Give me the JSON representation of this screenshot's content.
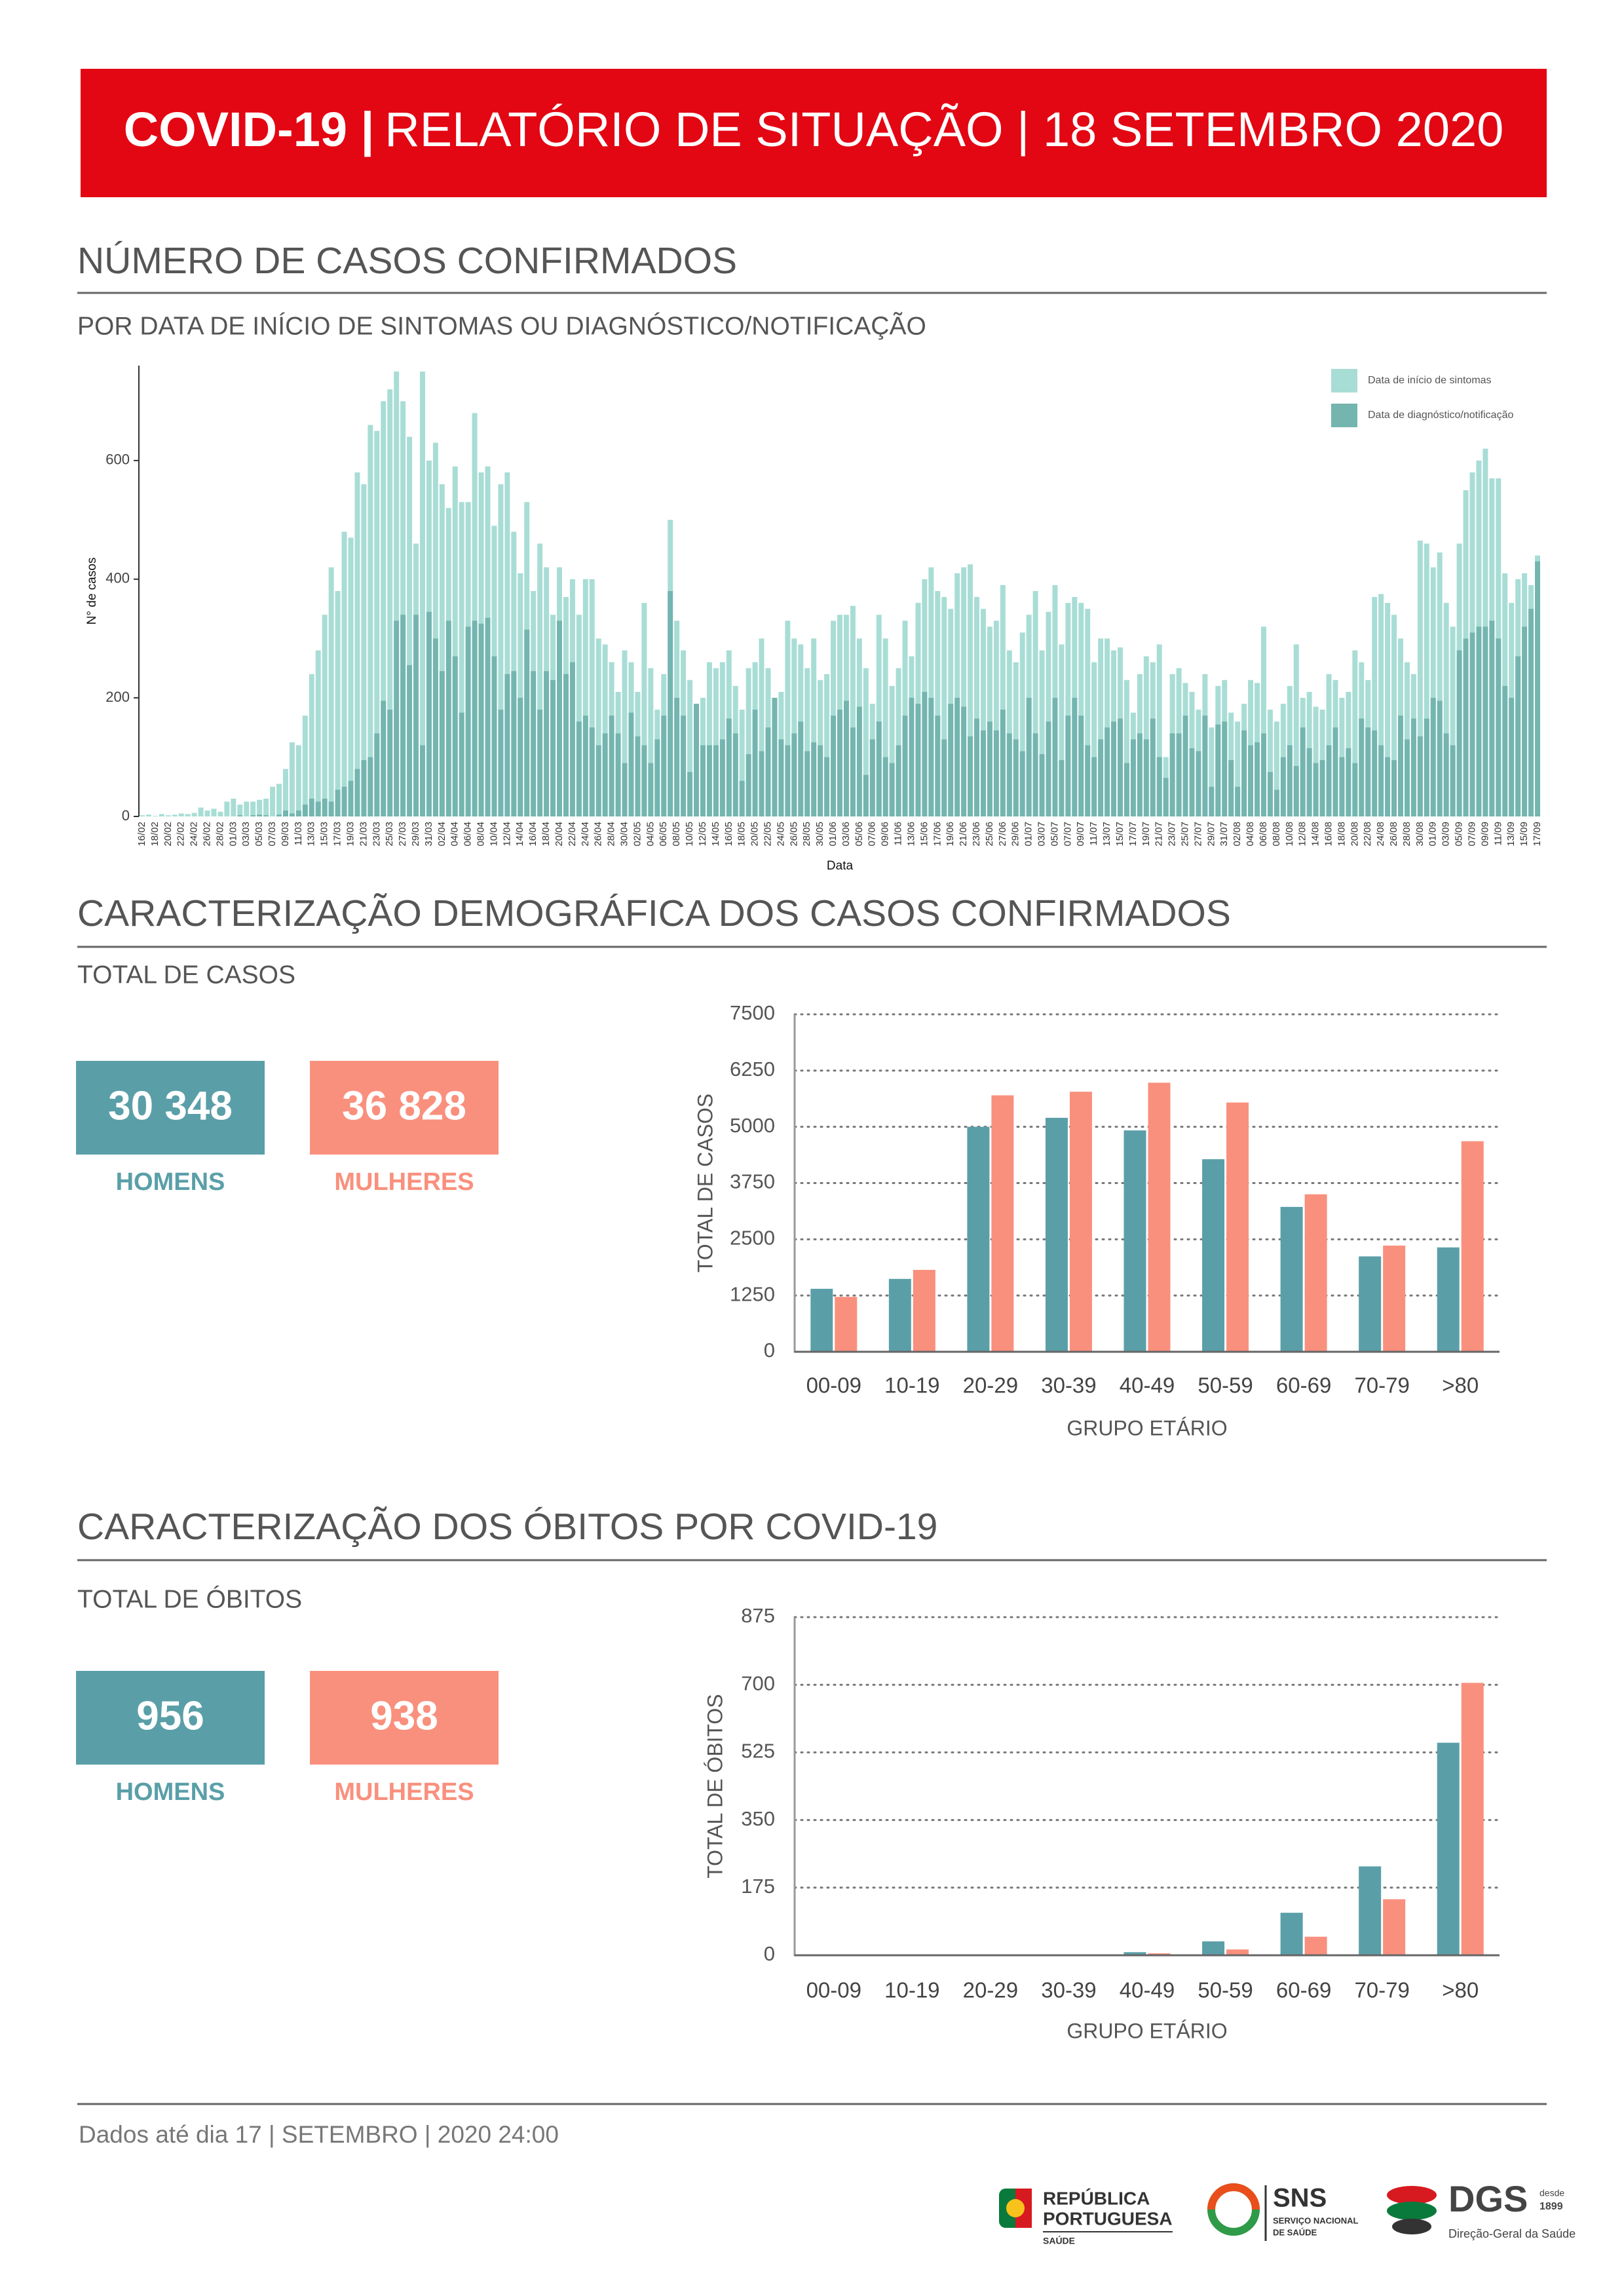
{
  "header": {
    "title_bold": "COVID-19 |",
    "title": "RELATÓRIO DE SITUAÇÃO | 18 SETEMBRO 2020"
  },
  "sections": [
    {
      "title": "NÚMERO DE CASOS CONFIRMADOS",
      "subtitle": "POR DATA DE INÍCIO DE SINTOMAS OU DIAGNÓSTICO/NOTIFICAÇÃO"
    },
    {
      "title": "CARACTERIZAÇÃO DEMOGRÁFICA DOS CASOS CONFIRMADOS",
      "subtitle": "TOTAL DE CASOS",
      "totals": [
        "30 348",
        "36 828"
      ]
    },
    {
      "title": "CARACTERIZAÇÃO DOS ÓBITOS POR COVID-19",
      "subtitle": "TOTAL DE ÓBITOS",
      "totals": [
        "956",
        "938"
      ]
    }
  ],
  "footer": "Dados até dia 17 | SETEMBRO | 2020 24:00",
  "logos": {
    "republica": [
      "REPÚBLICA",
      "PORTUGUESA",
      "SAÚDE"
    ],
    "sns": [
      "SNS",
      "SERVIÇO NACIONAL",
      "DE SAÚDE"
    ],
    "dgs": [
      "DGS",
      "desde",
      "1899",
      "Direção-Geral da Saúde"
    ]
  },
  "chart_data": [
    {
      "type": "bar",
      "barmode": "overlay",
      "xlabel": "Data",
      "ylabel": "N° de casos",
      "legend": "top-right",
      "grid": false,
      "ylim": [
        0,
        760
      ],
      "yticks": [
        0,
        200,
        400,
        600
      ],
      "categories": [
        "16/02",
        null,
        "18/02",
        null,
        "20/02",
        null,
        "22/02",
        null,
        "24/02",
        null,
        "26/02",
        null,
        "28/02",
        null,
        "01/03",
        null,
        "03/03",
        null,
        "05/03",
        null,
        "07/03",
        null,
        "09/03",
        null,
        "11/03",
        null,
        "13/03",
        null,
        "15/03",
        null,
        "17/03",
        null,
        "19/03",
        null,
        "21/03",
        null,
        "23/03",
        null,
        "25/03",
        null,
        "27/03",
        null,
        "29/03",
        null,
        "31/03",
        null,
        "02/04",
        null,
        "04/04",
        null,
        "06/04",
        null,
        "08/04",
        null,
        "10/04",
        null,
        "12/04",
        null,
        "14/04",
        null,
        "16/04",
        null,
        "18/04",
        null,
        "20/04",
        null,
        "22/04",
        null,
        "24/04",
        null,
        "26/04",
        null,
        "28/04",
        null,
        "30/04",
        null,
        "02/05",
        null,
        "04/05",
        null,
        "06/05",
        null,
        "08/05",
        null,
        "10/05",
        null,
        "12/05",
        null,
        "14/05",
        null,
        "16/05",
        null,
        "18/05",
        null,
        "20/05",
        null,
        "22/05",
        null,
        "24/05",
        null,
        "26/05",
        null,
        "28/05",
        null,
        "30/05",
        null,
        "01/06",
        null,
        "03/06",
        null,
        "05/06",
        null,
        "07/06",
        null,
        "09/06",
        null,
        "11/06",
        null,
        "13/06",
        null,
        "15/06",
        null,
        "17/06",
        null,
        "19/06",
        null,
        "21/06",
        null,
        "23/06",
        null,
        "25/06",
        null,
        "27/06",
        null,
        "29/06",
        null,
        "01/07",
        null,
        "03/07",
        null,
        "05/07",
        null,
        "07/07",
        null,
        "09/07",
        null,
        "11/07",
        null,
        "13/07",
        null,
        "15/07",
        null,
        "17/07",
        null,
        "19/07",
        null,
        "21/07",
        null,
        "23/07",
        null,
        "25/07",
        null,
        "27/07",
        null,
        "29/07",
        null,
        "31/07",
        null,
        "02/08",
        null,
        "04/08",
        null,
        "06/08",
        null,
        "08/08",
        null,
        "10/08",
        null,
        "12/08",
        null,
        "14/08",
        null,
        "16/08",
        null,
        "18/08",
        null,
        "20/08",
        null,
        "22/08",
        null,
        "24/08",
        null,
        "26/08",
        null,
        "28/08",
        null,
        "30/08",
        null,
        "01/09",
        null,
        "03/09",
        null,
        "05/09",
        null,
        "07/09",
        null,
        "09/09",
        null,
        "11/09",
        null,
        "13/09",
        null,
        "15/09",
        null,
        "17/09"
      ],
      "series": [
        {
          "name": "Data de início de sintomas",
          "color": "#a8ddd5",
          "values": [
            2,
            3,
            1,
            4,
            2,
            3,
            5,
            4,
            6,
            15,
            10,
            13,
            8,
            25,
            30,
            20,
            25,
            25,
            28,
            30,
            50,
            55,
            80,
            125,
            120,
            170,
            240,
            280,
            340,
            420,
            380,
            480,
            470,
            580,
            560,
            660,
            650,
            700,
            720,
            750,
            700,
            640,
            460,
            750,
            600,
            630,
            560,
            520,
            590,
            530,
            530,
            680,
            580,
            590,
            490,
            560,
            580,
            480,
            410,
            530,
            380,
            460,
            420,
            340,
            420,
            370,
            400,
            340,
            400,
            400,
            300,
            290,
            260,
            210,
            280,
            260,
            210,
            360,
            250,
            180,
            240,
            500,
            330,
            280,
            230,
            190,
            200,
            260,
            250,
            260,
            280,
            220,
            180,
            250,
            260,
            300,
            250,
            200,
            210,
            330,
            300,
            290,
            250,
            300,
            230,
            240,
            330,
            340,
            340,
            355,
            300,
            250,
            190,
            340,
            300,
            220,
            250,
            330,
            270,
            360,
            400,
            420,
            380,
            370,
            350,
            410,
            420,
            425,
            370,
            350,
            320,
            330,
            390,
            280,
            260,
            310,
            340,
            380,
            280,
            345,
            390,
            290,
            360,
            370,
            360,
            350,
            260,
            300,
            300,
            280,
            285,
            230,
            175,
            240,
            270,
            260,
            290,
            100,
            240,
            250,
            225,
            210,
            180,
            240,
            150,
            220,
            230,
            175,
            160,
            190,
            230,
            225,
            320,
            180,
            160,
            190,
            220,
            290,
            200,
            210,
            185,
            180,
            240,
            230,
            200,
            210,
            280,
            260,
            230,
            370,
            375,
            360,
            340,
            300,
            260,
            240,
            465,
            460,
            420,
            445,
            360,
            320,
            460,
            550,
            580,
            600,
            620,
            570,
            570,
            410,
            360,
            400,
            410,
            390,
            440
          ]
        },
        {
          "name": "Data de diagnóstico/notificação",
          "color": "#74b5b0",
          "values": [
            0,
            0,
            0,
            0,
            0,
            0,
            0,
            0,
            0,
            0,
            0,
            0,
            0,
            0,
            0,
            2,
            0,
            2,
            3,
            2,
            0,
            3,
            10,
            5,
            10,
            20,
            30,
            25,
            30,
            25,
            45,
            50,
            60,
            80,
            95,
            100,
            140,
            195,
            180,
            330,
            340,
            255,
            340,
            120,
            345,
            300,
            245,
            330,
            270,
            175,
            320,
            330,
            325,
            335,
            270,
            180,
            240,
            245,
            200,
            315,
            245,
            180,
            245,
            230,
            330,
            240,
            260,
            160,
            170,
            150,
            120,
            140,
            170,
            140,
            90,
            175,
            135,
            120,
            90,
            130,
            170,
            380,
            200,
            170,
            75,
            190,
            120,
            120,
            120,
            130,
            165,
            140,
            60,
            105,
            180,
            110,
            150,
            200,
            130,
            120,
            140,
            160,
            110,
            125,
            120,
            100,
            170,
            180,
            195,
            150,
            185,
            70,
            130,
            160,
            100,
            90,
            120,
            170,
            200,
            190,
            210,
            200,
            170,
            130,
            190,
            200,
            185,
            135,
            165,
            145,
            160,
            145,
            180,
            140,
            130,
            110,
            200,
            140,
            105,
            160,
            200,
            95,
            170,
            200,
            170,
            120,
            100,
            130,
            150,
            160,
            165,
            90,
            130,
            140,
            130,
            165,
            100,
            65,
            140,
            140,
            170,
            115,
            110,
            170,
            50,
            155,
            160,
            95,
            50,
            145,
            120,
            125,
            140,
            75,
            45,
            100,
            120,
            85,
            150,
            115,
            90,
            95,
            120,
            150,
            100,
            115,
            90,
            165,
            150,
            145,
            120,
            100,
            95,
            170,
            130,
            165,
            135,
            165,
            200,
            195,
            140,
            120,
            280,
            300,
            310,
            320,
            320,
            330,
            300,
            220,
            200,
            270,
            320,
            350,
            430
          ]
        }
      ]
    },
    {
      "type": "bar",
      "barmode": "group",
      "xlabel": "GRUPO ETÁRIO",
      "ylabel": "TOTAL DE CASOS",
      "grid": true,
      "ylim": [
        0,
        7500
      ],
      "yticks": [
        0,
        1250,
        2500,
        3750,
        5000,
        6250,
        7500
      ],
      "categories": [
        "00-09",
        "10-19",
        "20-29",
        "30-39",
        "40-49",
        "50-59",
        "60-69",
        "70-79",
        ">80"
      ],
      "series": [
        {
          "name": "HOMENS",
          "color": "#5a9fa8",
          "values": [
            1400,
            1620,
            5000,
            5200,
            4920,
            4280,
            3220,
            2120,
            2320
          ]
        },
        {
          "name": "MULHERES",
          "color": "#f9907d",
          "values": [
            1220,
            1820,
            5700,
            5780,
            5980,
            5540,
            3500,
            2360,
            4680
          ]
        }
      ]
    },
    {
      "type": "bar",
      "barmode": "group",
      "xlabel": "GRUPO ETÁRIO",
      "ylabel": "TOTAL DE ÓBITOS",
      "grid": true,
      "ylim": [
        0,
        875
      ],
      "yticks": [
        0,
        175,
        350,
        525,
        700,
        875
      ],
      "categories": [
        "00-09",
        "10-19",
        "20-29",
        "30-39",
        "40-49",
        "50-59",
        "60-69",
        "70-79",
        ">80"
      ],
      "series": [
        {
          "name": "HOMENS",
          "color": "#5a9fa8",
          "values": [
            0,
            0,
            0,
            1,
            8,
            36,
            110,
            230,
            550
          ]
        },
        {
          "name": "MULHERES",
          "color": "#f9907d",
          "values": [
            0,
            0,
            0,
            0,
            5,
            15,
            48,
            145,
            705
          ]
        }
      ]
    }
  ]
}
